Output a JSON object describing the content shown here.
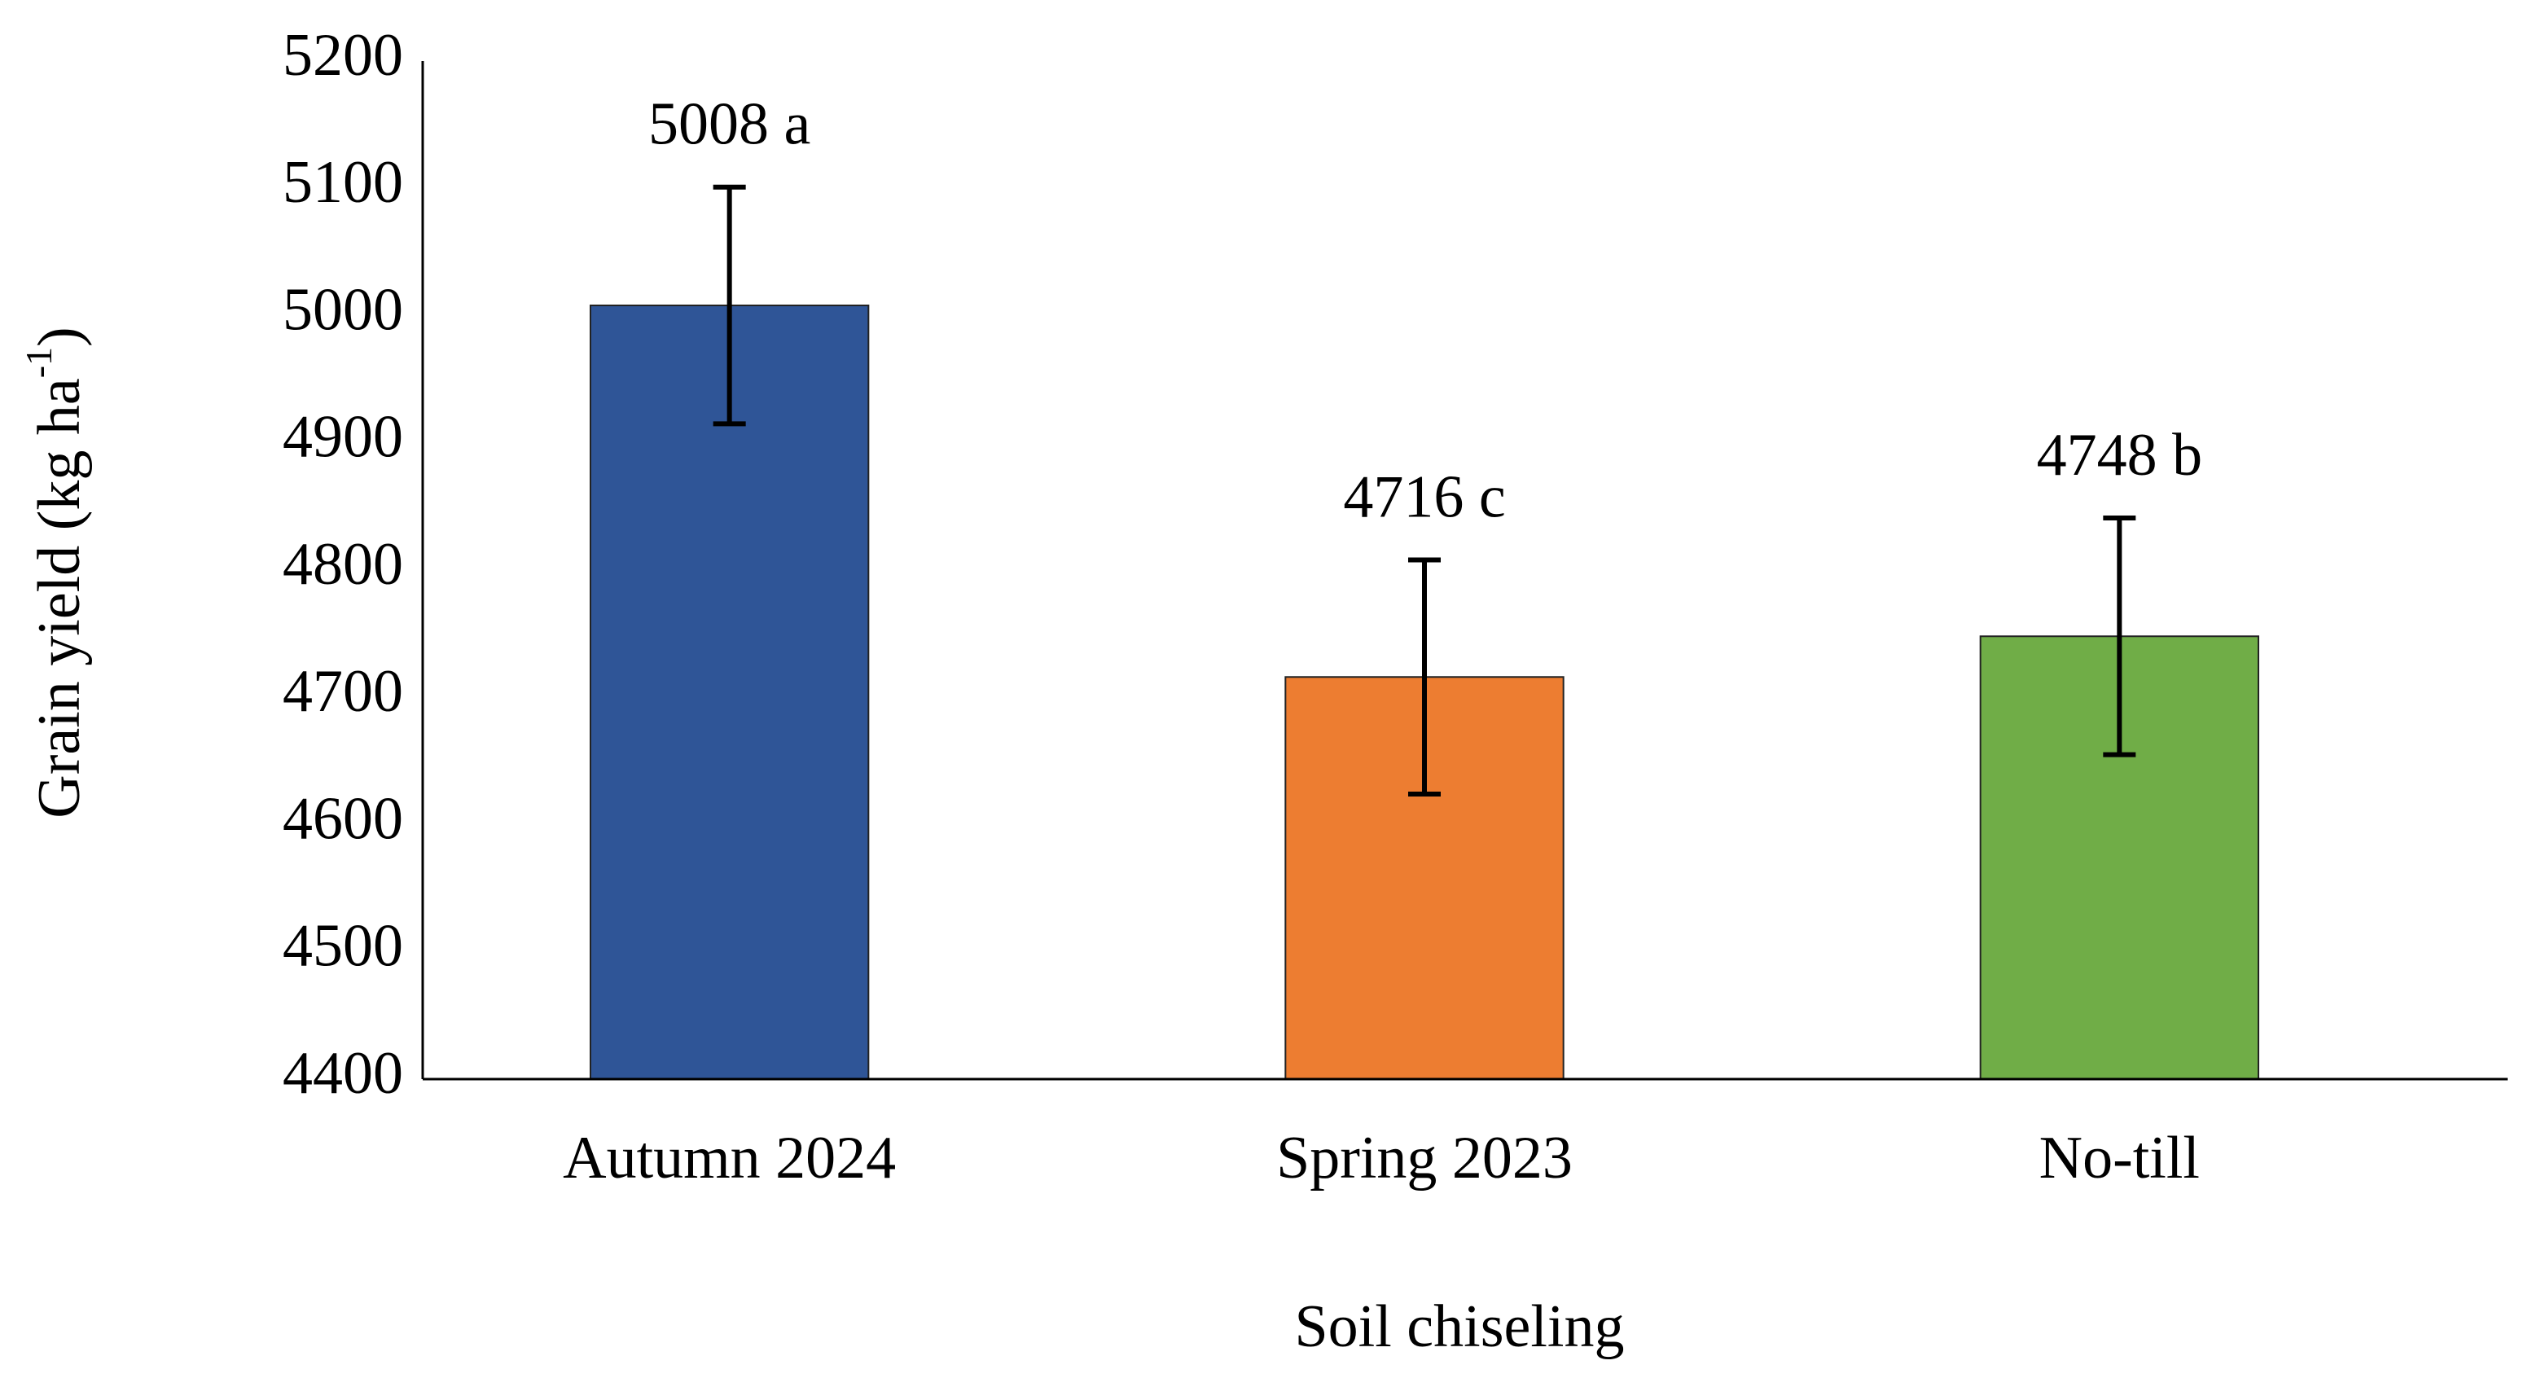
{
  "chart_data": {
    "type": "bar",
    "y_label_parts": [
      "Grain yield (kg ha",
      "-1",
      ")"
    ],
    "x_label": "Soil chiseling",
    "categories": [
      "Autumn 2024",
      "Spring 2023",
      "No-till"
    ],
    "values": [
      5008,
      4716,
      4748
    ],
    "value_labels": [
      "5008 a",
      "4716 c",
      "4748 b"
    ],
    "errors": [
      93,
      92,
      93
    ],
    "colors": [
      "#2f5597",
      "#ed7d31",
      "#70ad47"
    ],
    "ylim": [
      4400,
      5200
    ],
    "yticks": [
      4400,
      4500,
      4600,
      4700,
      4800,
      4900,
      5000,
      5100,
      5200
    ],
    "grid": false
  }
}
